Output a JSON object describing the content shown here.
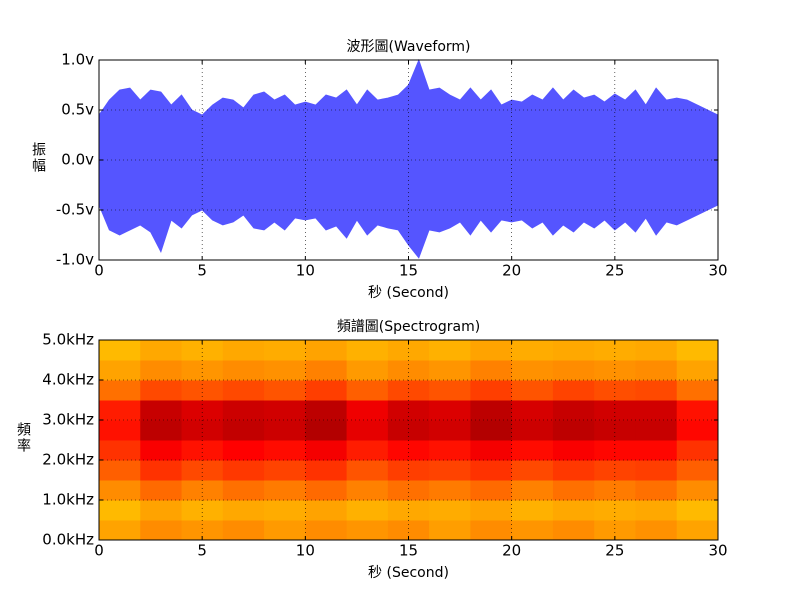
{
  "chart_data": [
    {
      "type": "envelope",
      "title": "波形圖(Waveform)",
      "xlabel": "秒 (Second)",
      "ylabel": "振幅",
      "color": "#5555ff",
      "grid": true,
      "xlim": [
        0,
        30
      ],
      "xticks": [
        0,
        5,
        10,
        15,
        20,
        25,
        30
      ],
      "ylim": [
        -1,
        1
      ],
      "yticks": [
        {
          "value": -1.0,
          "label": "-1.0v"
        },
        {
          "value": -0.5,
          "label": "-0.5v"
        },
        {
          "value": 0.0,
          "label": "0.0v"
        },
        {
          "value": 0.5,
          "label": "0.5v"
        },
        {
          "value": 1.0,
          "label": "1.0v"
        }
      ],
      "x": [
        0,
        0.5,
        1,
        1.5,
        2,
        2.5,
        3,
        3.5,
        4,
        4.5,
        5,
        5.5,
        6,
        6.5,
        7,
        7.5,
        8,
        8.5,
        9,
        9.5,
        10,
        10.5,
        11,
        11.5,
        12,
        12.5,
        13,
        13.5,
        14,
        14.5,
        15,
        15.5,
        16,
        16.5,
        17,
        17.5,
        18,
        18.5,
        19,
        19.5,
        20,
        20.5,
        21,
        21.5,
        22,
        22.5,
        23,
        23.5,
        24,
        24.5,
        25,
        25.5,
        26,
        26.5,
        27,
        27.5,
        28,
        28.5,
        29,
        29.5,
        30
      ],
      "upper": [
        0.45,
        0.6,
        0.7,
        0.72,
        0.6,
        0.7,
        0.68,
        0.55,
        0.65,
        0.5,
        0.45,
        0.55,
        0.62,
        0.6,
        0.52,
        0.65,
        0.68,
        0.6,
        0.65,
        0.55,
        0.58,
        0.55,
        0.65,
        0.62,
        0.7,
        0.55,
        0.7,
        0.6,
        0.62,
        0.65,
        0.75,
        1.0,
        0.7,
        0.72,
        0.65,
        0.6,
        0.72,
        0.6,
        0.7,
        0.55,
        0.6,
        0.58,
        0.65,
        0.6,
        0.72,
        0.6,
        0.7,
        0.62,
        0.65,
        0.58,
        0.66,
        0.6,
        0.7,
        0.55,
        0.72,
        0.6,
        0.62,
        0.6,
        0.55,
        0.5,
        0.45
      ],
      "lower": [
        -0.45,
        -0.7,
        -0.75,
        -0.7,
        -0.65,
        -0.72,
        -0.92,
        -0.6,
        -0.68,
        -0.55,
        -0.5,
        -0.6,
        -0.65,
        -0.62,
        -0.55,
        -0.68,
        -0.7,
        -0.62,
        -0.7,
        -0.58,
        -0.6,
        -0.58,
        -0.7,
        -0.66,
        -0.78,
        -0.6,
        -0.75,
        -0.65,
        -0.68,
        -0.7,
        -0.85,
        -0.98,
        -0.7,
        -0.72,
        -0.68,
        -0.62,
        -0.75,
        -0.6,
        -0.72,
        -0.6,
        -0.62,
        -0.6,
        -0.68,
        -0.62,
        -0.75,
        -0.65,
        -0.72,
        -0.62,
        -0.68,
        -0.6,
        -0.7,
        -0.62,
        -0.72,
        -0.58,
        -0.75,
        -0.62,
        -0.65,
        -0.6,
        -0.55,
        -0.5,
        -0.45
      ]
    },
    {
      "type": "heatmap",
      "title": "頻譜圖(Spectrogram)",
      "xlabel": "秒 (Second)",
      "ylabel": "頻率",
      "grid": true,
      "xlim": [
        0,
        30
      ],
      "xticks": [
        0,
        5,
        10,
        15,
        20,
        25,
        30
      ],
      "ylim": [
        0,
        5000
      ],
      "yticks": [
        {
          "value": 0,
          "label": "0.0kHz"
        },
        {
          "value": 1000,
          "label": "1.0kHz"
        },
        {
          "value": 2000,
          "label": "2.0kHz"
        },
        {
          "value": 3000,
          "label": "3.0kHz"
        },
        {
          "value": 4000,
          "label": "4.0kHz"
        },
        {
          "value": 5000,
          "label": "5.0kHz"
        }
      ],
      "colormap": [
        "#b0e050",
        "#ffff00",
        "#ff8c00",
        "#ff0000",
        "#800000"
      ],
      "zlim": [
        0,
        1
      ],
      "xbins": [
        0,
        2,
        4,
        6,
        8,
        10,
        12,
        14,
        16,
        18,
        20,
        22,
        24,
        26,
        28,
        30
      ],
      "ybins": [
        0,
        500,
        1000,
        1500,
        2000,
        2500,
        3000,
        3500,
        4000,
        4500,
        5000
      ],
      "z": [
        [
          0.45,
          0.5,
          0.48,
          0.5,
          0.47,
          0.5,
          0.48,
          0.5,
          0.46,
          0.5,
          0.48,
          0.5,
          0.47,
          0.49,
          0.45
        ],
        [
          0.4,
          0.45,
          0.42,
          0.44,
          0.43,
          0.45,
          0.42,
          0.44,
          0.43,
          0.45,
          0.42,
          0.44,
          0.43,
          0.44,
          0.4
        ],
        [
          0.5,
          0.56,
          0.52,
          0.55,
          0.53,
          0.56,
          0.52,
          0.55,
          0.53,
          0.56,
          0.52,
          0.55,
          0.53,
          0.55,
          0.5
        ],
        [
          0.58,
          0.66,
          0.62,
          0.65,
          0.63,
          0.66,
          0.6,
          0.64,
          0.63,
          0.66,
          0.62,
          0.65,
          0.63,
          0.64,
          0.58
        ],
        [
          0.66,
          0.76,
          0.72,
          0.75,
          0.73,
          0.77,
          0.7,
          0.74,
          0.72,
          0.77,
          0.73,
          0.76,
          0.74,
          0.74,
          0.66
        ],
        [
          0.72,
          0.88,
          0.84,
          0.87,
          0.85,
          0.9,
          0.8,
          0.86,
          0.84,
          0.9,
          0.85,
          0.88,
          0.86,
          0.86,
          0.74
        ],
        [
          0.7,
          0.86,
          0.82,
          0.85,
          0.84,
          0.88,
          0.78,
          0.84,
          0.82,
          0.88,
          0.83,
          0.86,
          0.84,
          0.84,
          0.72
        ],
        [
          0.55,
          0.62,
          0.6,
          0.62,
          0.6,
          0.64,
          0.58,
          0.62,
          0.6,
          0.64,
          0.6,
          0.63,
          0.61,
          0.62,
          0.55
        ],
        [
          0.45,
          0.5,
          0.48,
          0.5,
          0.49,
          0.52,
          0.47,
          0.5,
          0.48,
          0.52,
          0.49,
          0.5,
          0.49,
          0.5,
          0.45
        ],
        [
          0.4,
          0.44,
          0.42,
          0.44,
          0.43,
          0.45,
          0.42,
          0.44,
          0.42,
          0.45,
          0.43,
          0.44,
          0.43,
          0.44,
          0.4
        ]
      ]
    }
  ]
}
